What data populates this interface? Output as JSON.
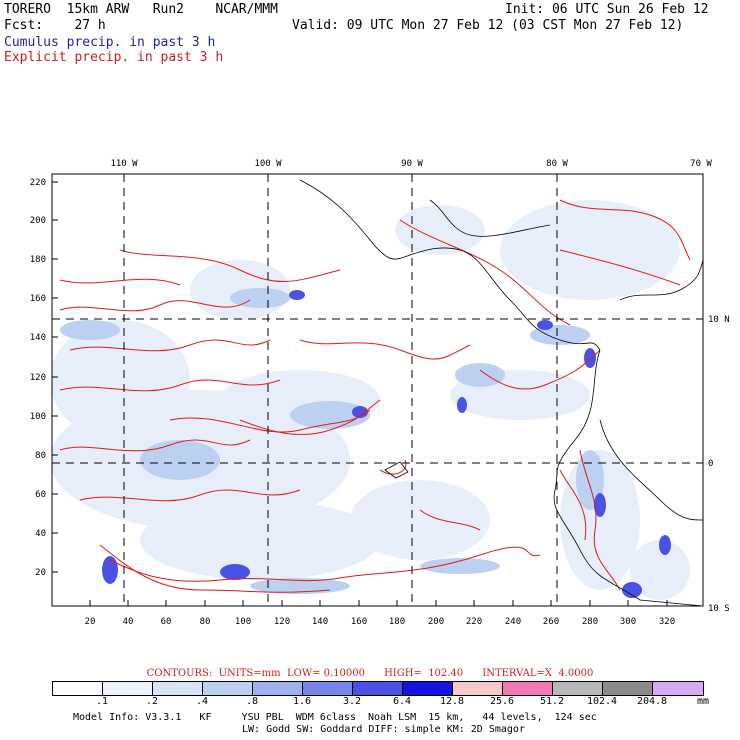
{
  "header": {
    "title": "TORERO  15km ARW   Run2    NCAR/MMM",
    "init": "Init: 06 UTC Sun 26 Feb 12",
    "fcst": "Fcst:    27 h",
    "valid": "Valid: 09 UTC Mon 27 Feb 12 (03 CST Mon 27 Feb 12)",
    "cumulus": "Cumulus precip. in past 3 h",
    "explicit": "Explicit precip. in past 3 h"
  },
  "axes": {
    "top_lon": [
      "110 W",
      "100 W",
      "90 W",
      "80 W",
      "70 W"
    ],
    "right_lat": [
      "10 N",
      "0",
      "10 S"
    ],
    "left_grid": [
      "220",
      "200",
      "180",
      "160",
      "140",
      "120",
      "100",
      "80",
      "60",
      "40",
      "20"
    ],
    "bottom_grid": [
      "20",
      "40",
      "60",
      "80",
      "100",
      "120",
      "140",
      "160",
      "180",
      "200",
      "220",
      "240",
      "260",
      "280",
      "300",
      "320"
    ]
  },
  "contours": {
    "text": "CONTOURS:  UNITS=mm  LOW= 0.10000      HIGH=  102.40      INTERVAL=X  4.0000"
  },
  "legend": {
    "labels": [
      ".1",
      ".2",
      ".4",
      ".8",
      "1.6",
      "3.2",
      "6.4",
      "12.8",
      "25.6",
      "51.2",
      "102.4",
      "204.8"
    ],
    "unit": "mm",
    "colors": [
      "#ffffff",
      "#eef3fb",
      "#d8e4f7",
      "#bcd0f2",
      "#9eb0ee",
      "#7a86ea",
      "#4a52e6",
      "#1414e0",
      "#f6c8c8",
      "#f27ab4",
      "#b8b8b8",
      "#8c8c8c",
      "#d8a8f2"
    ]
  },
  "model_info": {
    "line1": "Model Info: V3.3.1   KF     YSU PBL  WDM 6class  Noah LSM  15 km,   44 levels,  124 sec",
    "line2": "LW: Godd SW: Goddard DIFF: simple KM: 2D Smagor"
  }
}
